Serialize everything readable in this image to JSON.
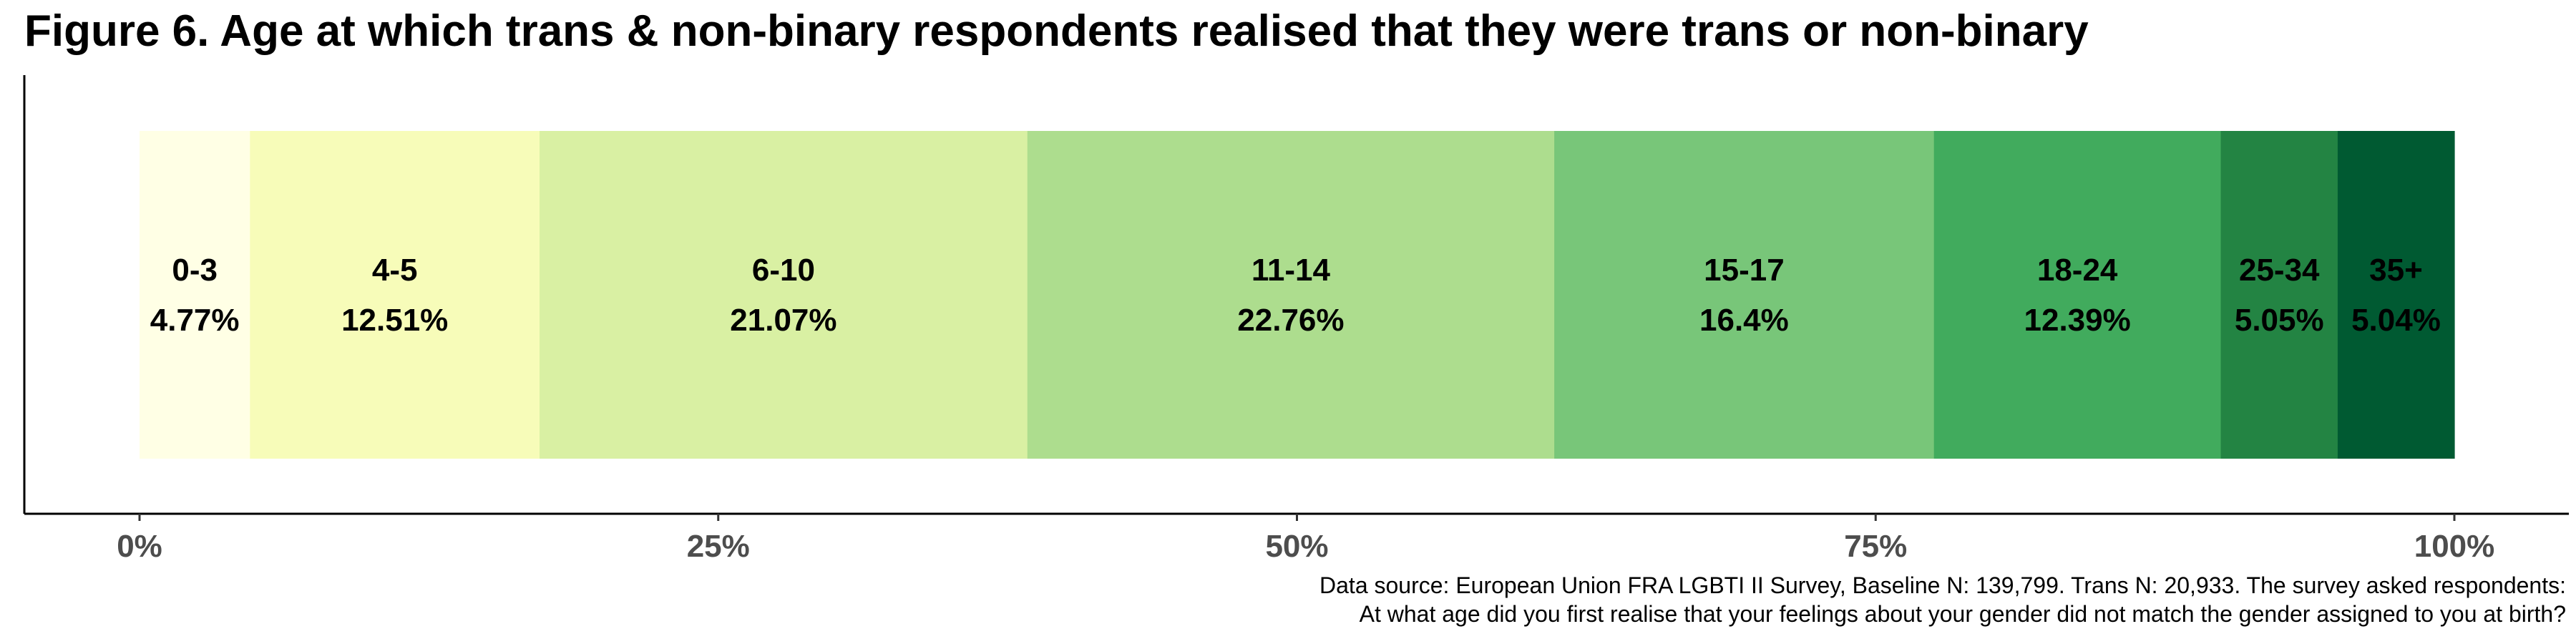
{
  "title": "Figure 6. Age at which trans & non-binary respondents realised that they were trans or non-binary",
  "caption": {
    "line1": "Data source: European Union FRA LGBTI II Survey, Baseline N: 139,799. Trans N: 20,933. The survey asked respondents:",
    "line2": "At what age did you first realise that your feelings about your gender did not match the gender assigned to you at birth?"
  },
  "chart_data": {
    "type": "bar",
    "orientation": "horizontal-stacked",
    "categories": [
      "0-3",
      "4-5",
      "6-10",
      "11-14",
      "15-17",
      "18-24",
      "25-34",
      "35+"
    ],
    "values": [
      4.77,
      12.51,
      21.07,
      22.76,
      16.4,
      12.39,
      5.05,
      5.04
    ],
    "value_labels": [
      "4.77%",
      "12.51%",
      "21.07%",
      "22.76%",
      "16.4%",
      "12.39%",
      "5.05%",
      "5.04%"
    ],
    "colors": [
      "#ffffe5",
      "#f7fcb9",
      "#d9f0a3",
      "#addd8e",
      "#78c679",
      "#41ab5d",
      "#238443",
      "#005a32"
    ],
    "xlim": [
      0,
      100
    ],
    "x_ticks": [
      0,
      25,
      50,
      75,
      100
    ],
    "x_tick_labels": [
      "0%",
      "25%",
      "50%",
      "75%",
      "100%"
    ],
    "xlabel": "",
    "ylabel": "",
    "grid": false,
    "legend": "none"
  }
}
